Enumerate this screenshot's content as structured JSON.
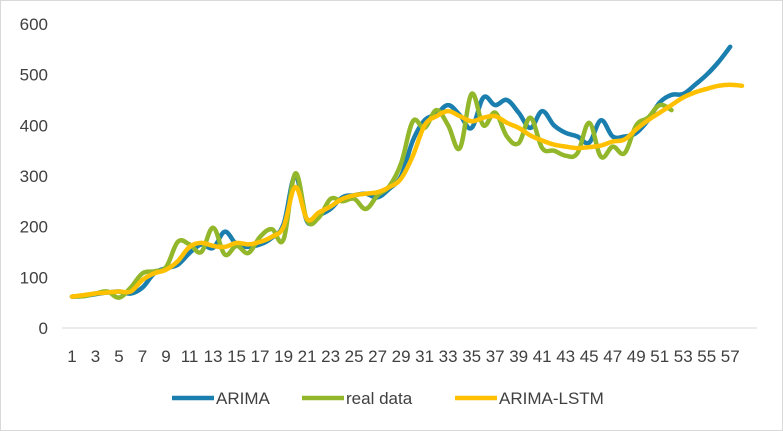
{
  "chart_data": {
    "type": "line",
    "title": "",
    "xlabel": "",
    "ylabel": "",
    "ylim": [
      0,
      600
    ],
    "yticks": [
      0,
      100,
      200,
      300,
      400,
      500,
      600
    ],
    "x": [
      1,
      2,
      3,
      4,
      5,
      6,
      7,
      8,
      9,
      10,
      11,
      12,
      13,
      14,
      15,
      16,
      17,
      18,
      19,
      20,
      21,
      22,
      23,
      24,
      25,
      26,
      27,
      28,
      29,
      30,
      31,
      32,
      33,
      34,
      35,
      36,
      37,
      38,
      39,
      40,
      41,
      42,
      43,
      44,
      45,
      46,
      47,
      48,
      49,
      50,
      51,
      52,
      53,
      54,
      55,
      56,
      57,
      58
    ],
    "xticklabels": [
      "1",
      "3",
      "5",
      "7",
      "9",
      "11",
      "13",
      "15",
      "17",
      "19",
      "21",
      "23",
      "25",
      "27",
      "29",
      "31",
      "33",
      "35",
      "37",
      "39",
      "41",
      "43",
      "45",
      "47",
      "49",
      "51",
      "53",
      "55",
      "57"
    ],
    "grid": false,
    "legend_position": "bottom",
    "series": [
      {
        "name": "ARIMA",
        "color": "#1a7fae",
        "values": [
          62,
          63,
          67,
          70,
          72,
          68,
          80,
          108,
          118,
          125,
          148,
          165,
          158,
          190,
          165,
          160,
          165,
          178,
          205,
          300,
          210,
          222,
          235,
          258,
          262,
          265,
          258,
          275,
          300,
          370,
          410,
          422,
          440,
          420,
          395,
          455,
          440,
          450,
          425,
          395,
          428,
          400,
          385,
          378,
          366,
          410,
          378,
          378,
          385,
          410,
          445,
          460,
          462,
          480,
          500,
          525,
          555,
          null
        ]
      },
      {
        "name": "real data",
        "color": "#93b72a",
        "values": [
          62,
          63,
          68,
          72,
          60,
          80,
          108,
          112,
          120,
          170,
          165,
          150,
          198,
          145,
          162,
          148,
          180,
          195,
          175,
          305,
          212,
          218,
          255,
          250,
          255,
          235,
          262,
          280,
          325,
          408,
          395,
          430,
          400,
          355,
          462,
          400,
          425,
          378,
          365,
          415,
          355,
          350,
          340,
          345,
          405,
          338,
          358,
          345,
          400,
          415,
          440,
          430,
          null,
          null,
          null,
          null,
          null,
          null
        ]
      },
      {
        "name": "ARIMA-LSTM",
        "color": "#ffc000",
        "values": [
          62,
          65,
          68,
          70,
          72,
          72,
          95,
          108,
          115,
          132,
          160,
          168,
          162,
          160,
          168,
          165,
          170,
          180,
          200,
          278,
          215,
          228,
          240,
          255,
          262,
          265,
          268,
          278,
          295,
          340,
          400,
          418,
          428,
          418,
          408,
          415,
          418,
          405,
          395,
          380,
          370,
          362,
          358,
          355,
          357,
          360,
          368,
          372,
          392,
          410,
          425,
          440,
          455,
          465,
          472,
          478,
          480,
          478
        ]
      }
    ]
  }
}
